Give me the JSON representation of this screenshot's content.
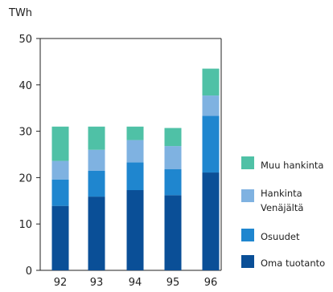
{
  "chart_data": {
    "type": "bar",
    "stacked": true,
    "unit_label": "TWh",
    "categories": [
      "92",
      "93",
      "94",
      "95",
      "96"
    ],
    "y_ticks": [
      "0",
      "10",
      "20",
      "30",
      "40",
      "50"
    ],
    "ylim": [
      0,
      50
    ],
    "grid": false,
    "legend_position": "right",
    "series": [
      {
        "name": "Oma tuotanto",
        "color": "#0a4f97",
        "values": [
          13.9,
          15.9,
          17.3,
          16.2,
          21.1
        ]
      },
      {
        "name": "Osuudet",
        "color": "#1f86cf",
        "values": [
          5.7,
          5.6,
          6.0,
          5.6,
          12.2
        ]
      },
      {
        "name": "Hankinta Venäjältä",
        "color": "#7fb2e1",
        "values": [
          4.0,
          4.5,
          4.8,
          5.0,
          4.4
        ]
      },
      {
        "name": "Muu hankinta",
        "color": "#4fc1a6",
        "values": [
          7.4,
          5.0,
          2.9,
          3.9,
          5.8
        ]
      }
    ]
  },
  "legend": [
    {
      "lines": [
        "Muu hankinta"
      ],
      "color": "#4fc1a6"
    },
    {
      "lines": [
        "Hankinta",
        "Venäjältä"
      ],
      "color": "#7fb2e1"
    },
    {
      "lines": [
        "Osuudet"
      ],
      "color": "#1f86cf"
    },
    {
      "lines": [
        "Oma tuotanto"
      ],
      "color": "#0a4f97"
    }
  ]
}
